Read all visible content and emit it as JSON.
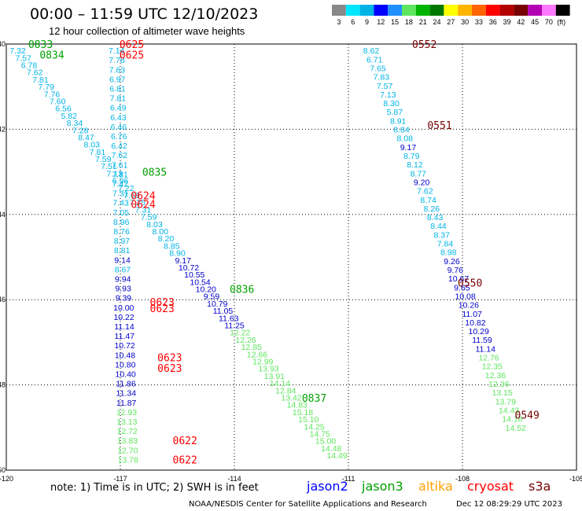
{
  "header": {
    "title": "00:00 – 11:59 UTC 12/10/2023",
    "subtitle": "12 hour collection of altimeter wave heights"
  },
  "legend": {
    "labels": [
      "3",
      "6",
      "9",
      "12",
      "15",
      "18",
      "21",
      "24",
      "27",
      "30",
      "33",
      "36",
      "39",
      "42",
      "45",
      "70",
      "(ft)"
    ],
    "colors": [
      "#888888",
      "#00e6ff",
      "#00b4e6",
      "#0000ff",
      "#1e90ff",
      "#5fe65f",
      "#00b400",
      "#007800",
      "#ffff00",
      "#ffb400",
      "#ff6400",
      "#ff0000",
      "#b40000",
      "#780000",
      "#b400b4",
      "#ff78ff",
      "#000000"
    ]
  },
  "footer": {
    "note": "note: 1) Time is in UTC; 2) SWH is in feet",
    "satellites": [
      {
        "name": "jason2",
        "color": "#0000ff"
      },
      {
        "name": "jason3",
        "color": "#00a000"
      },
      {
        "name": "altika",
        "color": "#ffa000"
      },
      {
        "name": "cryosat",
        "color": "#ff0000"
      },
      {
        "name": "s3a",
        "color": "#780000"
      }
    ],
    "credit": "NOAA/NESDIS Center for Satellite Applications and Research",
    "timestamp": "Dec 12 08:29:29 UTC 2023"
  },
  "chart_data": {
    "type": "scatter",
    "xlim": [
      -120,
      -105
    ],
    "ylim": [
      -50,
      -40
    ],
    "xticks": [
      -120,
      -117,
      -114,
      -111,
      -108,
      -105
    ],
    "yticks": [
      -40,
      -42,
      -44,
      -46,
      -48,
      -50
    ],
    "grid": true,
    "color_scale": [
      {
        "max": 9,
        "color": "#00b4e6"
      },
      {
        "max": 12,
        "color": "#0000cc"
      },
      {
        "max": 18,
        "color": "#5fe65f"
      }
    ],
    "tracks": [
      {
        "values": [
          7.32,
          7.57,
          6.78,
          7.62,
          7.81,
          7.79,
          7.76,
          7.6,
          6.56,
          5.82,
          8.34,
          7.28,
          8.47,
          8.03,
          7.81,
          7.59,
          7.51,
          7.13,
          6.96,
          7.22,
          7.68,
          7.25,
          7.31,
          7.59,
          8.03,
          8.0,
          8.2,
          8.85,
          8.9,
          9.17,
          10.72,
          10.55,
          10.54,
          10.2,
          9.59,
          10.79,
          11.05,
          11.63,
          11.25,
          12.22,
          12.26,
          12.85,
          12.66,
          12.99,
          13.93,
          13.91,
          14.14,
          12.84,
          13.42,
          14.83,
          15.18,
          15.1,
          14.25,
          14.75,
          15.0,
          14.48,
          14.49
        ],
        "lon_start": -119.7,
        "lat_start": -40.15,
        "lon_end": -111.3,
        "lat_end": -49.65
      },
      {
        "values": [
          7.14,
          7.78,
          7.63,
          6.97,
          6.81,
          7.81,
          6.49,
          6.43,
          6.46,
          6.76,
          6.42,
          7.62,
          7.61,
          7.81,
          7.42,
          7.31,
          7.43,
          7.05,
          8.96,
          8.76,
          8.97,
          8.81,
          9.14,
          8.67,
          9.94,
          9.93,
          9.39,
          10.0,
          10.22,
          11.14,
          11.47,
          10.72,
          10.48,
          10.8,
          10.4,
          11.86,
          11.34,
          11.87,
          12.93,
          13.13,
          12.72,
          13.83,
          12.7,
          13.78
        ],
        "lon_start": -117.1,
        "lat_start": -40.15,
        "lon_end": -116.8,
        "lat_end": -49.75
      },
      {
        "values": [
          8.62,
          6.71,
          7.65,
          7.83,
          7.57,
          7.13,
          8.3,
          5.87,
          8.91,
          8.84,
          8.08,
          9.17,
          8.79,
          8.12,
          8.77,
          9.2,
          7.62,
          8.74,
          8.26,
          8.43,
          8.44,
          8.37,
          7.84,
          8.98,
          9.26,
          9.76,
          10.67,
          9.65,
          10.08,
          10.26,
          11.07,
          10.82,
          10.29,
          11.59,
          11.14,
          12.76,
          12.35,
          12.36,
          12.36,
          13.15,
          13.79,
          14.43,
          14.18,
          14.52
        ],
        "lon_start": -110.4,
        "lat_start": -40.15,
        "lon_end": -106.6,
        "lat_end": -49.0
      }
    ],
    "pass_labels": [
      {
        "text": "0833",
        "sat": "jason3",
        "lon": -119.1,
        "lat": -40.0
      },
      {
        "text": "0834",
        "sat": "jason3",
        "lon": -118.8,
        "lat": -40.25
      },
      {
        "text": "0625",
        "sat": "cryosat",
        "lon": -116.7,
        "lat": -40.0
      },
      {
        "text": "0625",
        "sat": "cryosat",
        "lon": -116.7,
        "lat": -40.25
      },
      {
        "text": "0835",
        "sat": "jason3",
        "lon": -116.1,
        "lat": -43.0
      },
      {
        "text": "0624",
        "sat": "cryosat",
        "lon": -116.4,
        "lat": -43.55
      },
      {
        "text": "0624",
        "sat": "cryosat",
        "lon": -116.4,
        "lat": -43.75
      },
      {
        "text": "0836",
        "sat": "jason3",
        "lon": -113.8,
        "lat": -45.75
      },
      {
        "text": "0623",
        "sat": "cryosat",
        "lon": -115.9,
        "lat": -46.05
      },
      {
        "text": "0623",
        "sat": "cryosat",
        "lon": -115.9,
        "lat": -46.2
      },
      {
        "text": "0623",
        "sat": "cryosat",
        "lon": -115.7,
        "lat": -47.35
      },
      {
        "text": "0623",
        "sat": "cryosat",
        "lon": -115.7,
        "lat": -47.6
      },
      {
        "text": "0837",
        "sat": "jason3",
        "lon": -111.9,
        "lat": -48.3
      },
      {
        "text": "0622",
        "sat": "cryosat",
        "lon": -115.3,
        "lat": -49.3
      },
      {
        "text": "0622",
        "sat": "cryosat",
        "lon": -115.3,
        "lat": -49.75
      },
      {
        "text": "0552",
        "sat": "s3a",
        "lon": -109.0,
        "lat": -40.0
      },
      {
        "text": "0551",
        "sat": "s3a",
        "lon": -108.6,
        "lat": -41.9
      },
      {
        "text": "0550",
        "sat": "s3a",
        "lon": -107.8,
        "lat": -45.6
      },
      {
        "text": "0549",
        "sat": "s3a",
        "lon": -106.3,
        "lat": -48.7
      }
    ]
  }
}
